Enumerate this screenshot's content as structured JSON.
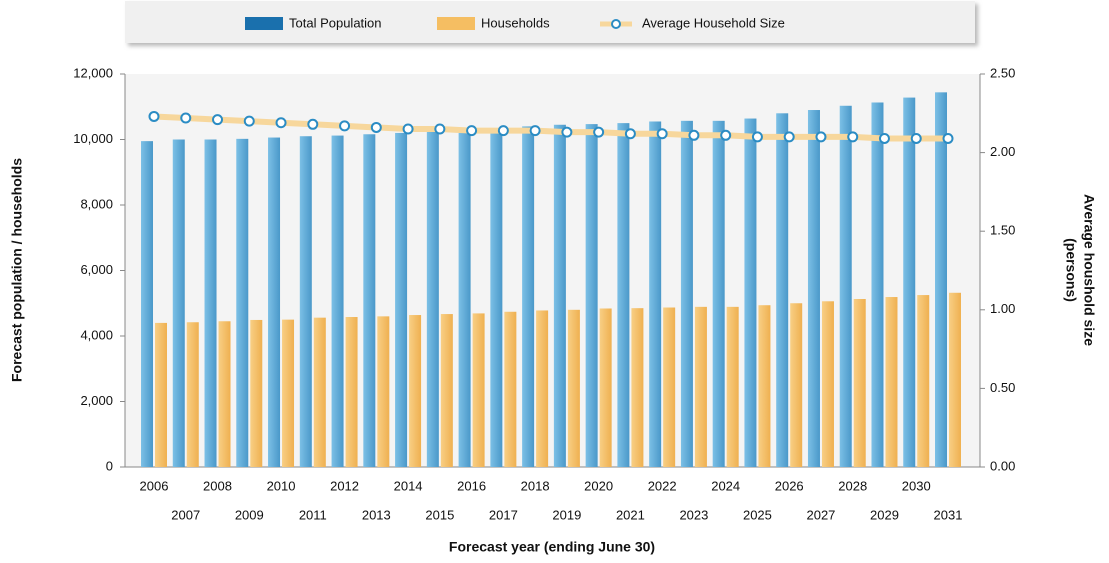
{
  "chart_data": {
    "type": "bar_line",
    "categories": [
      "2006",
      "2007",
      "2008",
      "2009",
      "2010",
      "2011",
      "2012",
      "2013",
      "2014",
      "2015",
      "2016",
      "2017",
      "2018",
      "2019",
      "2020",
      "2021",
      "2022",
      "2023",
      "2024",
      "2025",
      "2026",
      "2027",
      "2028",
      "2029",
      "2030",
      "2031"
    ],
    "series": [
      {
        "name": "Total Population",
        "type": "bar",
        "color": "#5aa8d6",
        "values": [
          9950,
          10000,
          10000,
          10020,
          10060,
          10100,
          10120,
          10160,
          10200,
          10250,
          10300,
          10350,
          10400,
          10450,
          10470,
          10500,
          10550,
          10570,
          10570,
          10640,
          10800,
          10900,
          11030,
          11130,
          11280,
          11440
        ]
      },
      {
        "name": "Households",
        "type": "bar",
        "color": "#f5be62",
        "values": [
          4400,
          4420,
          4450,
          4490,
          4500,
          4560,
          4580,
          4600,
          4640,
          4670,
          4690,
          4740,
          4780,
          4800,
          4840,
          4850,
          4870,
          4890,
          4890,
          4940,
          5000,
          5060,
          5130,
          5190,
          5250,
          5320
        ]
      },
      {
        "name": "Average Household Size",
        "type": "line",
        "axis": "y2",
        "color": "#f7d79c",
        "values": [
          2.23,
          2.22,
          2.21,
          2.2,
          2.19,
          2.18,
          2.17,
          2.16,
          2.15,
          2.15,
          2.14,
          2.14,
          2.14,
          2.13,
          2.13,
          2.12,
          2.12,
          2.11,
          2.11,
          2.1,
          2.1,
          2.1,
          2.1,
          2.09,
          2.09,
          2.09
        ]
      }
    ],
    "ylim": [
      0,
      12000
    ],
    "yticks": [
      0,
      {
        "value": 2000,
        "label": "2,000"
      },
      {
        "value": 4000,
        "label": "4,000"
      },
      {
        "value": 6000,
        "label": "6,000"
      },
      {
        "value": 8000,
        "label": "8,000"
      },
      {
        "value": 10000,
        "label": "10,000"
      },
      {
        "value": 12000,
        "label": "12,000"
      }
    ],
    "y2lim": [
      0,
      2.5
    ],
    "y2ticks": [
      {
        "value": 0,
        "label": "0.00"
      },
      {
        "value": 0.5,
        "label": "0.50"
      },
      {
        "value": 1,
        "label": "1.00"
      },
      {
        "value": 1.5,
        "label": "1.50"
      },
      {
        "value": 2,
        "label": "2.00"
      },
      {
        "value": 2.5,
        "label": "2.50"
      }
    ],
    "xlabel": "Forecast year (ending June 30)",
    "ylabel": "Forecast population / households",
    "y2label": [
      "Average houshold size",
      "(persons)"
    ],
    "legend": "top"
  }
}
